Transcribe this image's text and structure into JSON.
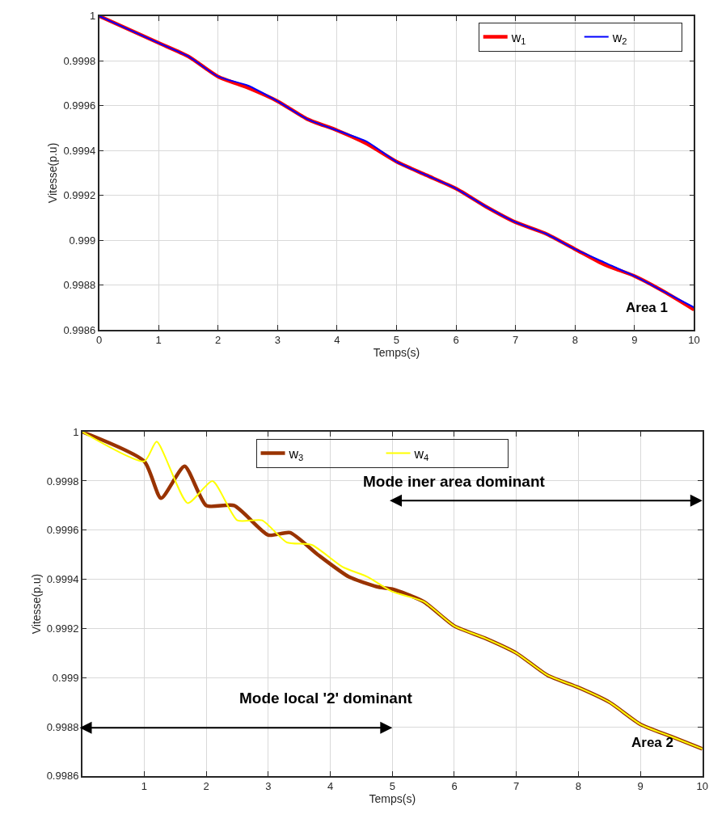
{
  "chart_data": [
    {
      "type": "line",
      "xlabel": "Temps(s)",
      "ylabel": "Vitesse(p.u)",
      "xlim": [
        0,
        10
      ],
      "xticks": [
        0,
        1,
        2,
        3,
        4,
        5,
        6,
        7,
        8,
        9,
        10
      ],
      "ylim": [
        0.9986,
        1
      ],
      "yticks": [
        0.9986,
        0.9988,
        0.999,
        0.9992,
        0.9994,
        0.9996,
        0.9998,
        1
      ],
      "grid": true,
      "legend": "top right",
      "x": [
        0,
        1,
        1.5,
        2,
        2.5,
        3,
        3.5,
        4,
        4.5,
        5,
        5.5,
        6,
        6.5,
        7,
        7.5,
        8,
        8.5,
        9,
        9.5,
        10
      ],
      "series": [
        {
          "name": "w$_{1}$",
          "color": "#ff0000",
          "values": [
            1.0,
            0.99988,
            0.99982,
            0.99973,
            0.99968,
            0.99962,
            0.99954,
            0.99949,
            0.99943,
            0.99935,
            0.99929,
            0.99923,
            0.99915,
            0.99908,
            0.99903,
            0.99896,
            0.99889,
            0.99884,
            0.99877,
            0.99869
          ]
        },
        {
          "name": "w$_{2}$",
          "color": "#0000ff",
          "values": [
            1.0,
            0.99988,
            0.99982,
            0.99973,
            0.99969,
            0.99962,
            0.99954,
            0.99949,
            0.99944,
            0.99935,
            0.99929,
            0.99923,
            0.99915,
            0.99908,
            0.99903,
            0.99896,
            0.9989,
            0.99884,
            0.99877,
            0.9987
          ]
        }
      ],
      "annotations": [
        "Area 1"
      ]
    },
    {
      "type": "line",
      "xlabel": "Temps(s)",
      "ylabel": "Vitesse(p.u)",
      "xlim": [
        0,
        10
      ],
      "xticks": [
        1,
        2,
        3,
        4,
        5,
        6,
        7,
        8,
        9,
        10
      ],
      "ylim": [
        0.9986,
        1
      ],
      "yticks": [
        0.9986,
        0.9988,
        0.999,
        0.9992,
        0.9994,
        0.9996,
        0.9998,
        1
      ],
      "grid": true,
      "legend": "top",
      "series": [
        {
          "name": "w$_{3}$",
          "color": "#993300",
          "x": [
            0,
            1,
            1.27,
            1.65,
            2.0,
            2.45,
            3.0,
            3.35,
            3.8,
            4.3,
            4.75,
            5,
            5.5,
            6,
            6.5,
            7,
            7.5,
            8,
            8.5,
            9,
            9.5,
            10
          ],
          "values": [
            1.0,
            0.99988,
            0.99973,
            0.99986,
            0.9997,
            0.9997,
            0.99958,
            0.99959,
            0.9995,
            0.99941,
            0.99937,
            0.99936,
            0.99931,
            0.99921,
            0.99916,
            0.9991,
            0.99901,
            0.99896,
            0.9989,
            0.99881,
            0.99876,
            0.99871
          ]
        },
        {
          "name": "w$_{4}$",
          "color": "#ffff00",
          "x": [
            0,
            1,
            1.2,
            1.7,
            2.1,
            2.5,
            2.9,
            3.3,
            3.7,
            4.2,
            4.6,
            5,
            5.5,
            6,
            6.5,
            7,
            7.5,
            8,
            8.5,
            9,
            9.5,
            10
          ],
          "values": [
            1.0,
            0.99988,
            0.99996,
            0.99971,
            0.9998,
            0.99964,
            0.99964,
            0.99955,
            0.99954,
            0.99945,
            0.99941,
            0.99935,
            0.99931,
            0.99921,
            0.99916,
            0.9991,
            0.99901,
            0.99896,
            0.9989,
            0.99881,
            0.99876,
            0.99871
          ]
        }
      ],
      "annotations": [
        "Mode iner area dominant",
        "Mode local '2' dominant",
        "Area 2"
      ]
    }
  ]
}
